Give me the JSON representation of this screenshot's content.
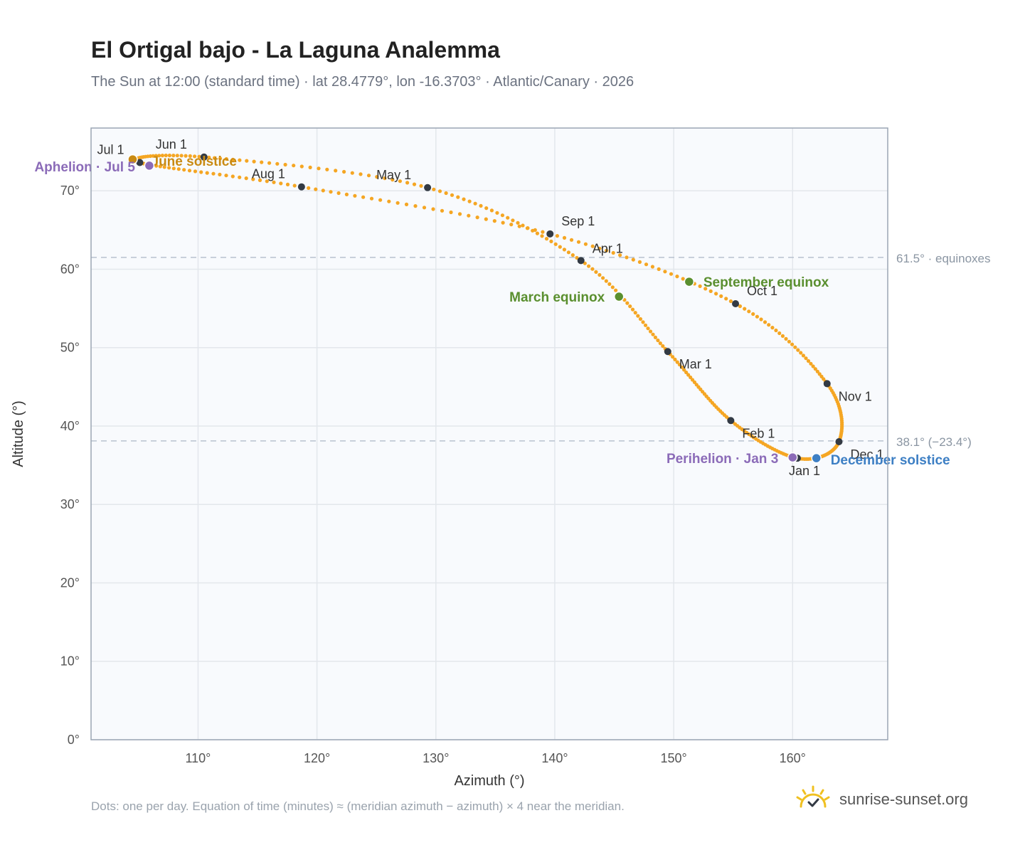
{
  "header": {
    "title": "El Ortigal bajo - La Laguna Analemma",
    "subtitle": "The Sun at 12:00 (standard time) · lat 28.4779°, lon -16.3703° · Atlantic/Canary · 2026"
  },
  "footer": {
    "note": "Dots: one per day. Equation of time (minutes) ≈ (meridian azimuth − azimuth) × 4 near the meridian.",
    "brand": "sunrise-sunset.org"
  },
  "colors": {
    "path": "#f5a623",
    "month_dot": "#333a44",
    "equinox": "#5a8f2f",
    "december_solstice": "#3d7fc4",
    "june_solstice": "#c98a12",
    "apsis": "#8b6bb8",
    "grid": "#e3e7ec",
    "plot_bg": "#f8fafd",
    "ref_line": "#b8c2cf",
    "brand_sun": "#f0c020"
  },
  "chart_data": {
    "type": "scatter",
    "xlabel": "Azimuth (°)",
    "ylabel": "Altitude (°)",
    "xlim": [
      101,
      168
    ],
    "ylim": [
      0,
      78
    ],
    "grid": true,
    "x_ticks": [
      110,
      120,
      130,
      140,
      150,
      160
    ],
    "y_ticks": [
      0,
      10,
      20,
      30,
      40,
      50,
      60,
      70
    ],
    "x_tick_labels": [
      "110°",
      "120°",
      "130°",
      "140°",
      "150°",
      "160°"
    ],
    "y_tick_labels": [
      "0°",
      "10°",
      "20°",
      "30°",
      "40°",
      "50°",
      "60°",
      "70°"
    ],
    "reference_lines": [
      {
        "y": 61.5,
        "label": "61.5° · equinoxes"
      },
      {
        "y": 38.1,
        "label": "38.1° (−23.4°)"
      }
    ],
    "month_markers": [
      {
        "label": "Jan 1",
        "x": 160.4,
        "y": 35.9
      },
      {
        "label": "Feb 1",
        "x": 154.8,
        "y": 40.7
      },
      {
        "label": "Mar 1",
        "x": 149.5,
        "y": 49.5
      },
      {
        "label": "Apr 1",
        "x": 142.2,
        "y": 61.1
      },
      {
        "label": "May 1",
        "x": 129.3,
        "y": 70.4
      },
      {
        "label": "Jun 1",
        "x": 110.5,
        "y": 74.3
      },
      {
        "label": "Jul 1",
        "x": 105.1,
        "y": 73.6
      },
      {
        "label": "Aug 1",
        "x": 118.7,
        "y": 70.5
      },
      {
        "label": "Sep 1",
        "x": 139.6,
        "y": 64.5
      },
      {
        "label": "Oct 1",
        "x": 155.2,
        "y": 55.6
      },
      {
        "label": "Nov 1",
        "x": 162.9,
        "y": 45.4
      },
      {
        "label": "Dec 1",
        "x": 163.9,
        "y": 38.0
      }
    ],
    "events": [
      {
        "label": "March equinox",
        "x": 145.4,
        "y": 56.5
      },
      {
        "label": "September equinox",
        "x": 151.3,
        "y": 58.4
      },
      {
        "label": "June solstice",
        "x": 104.5,
        "y": 74.0
      },
      {
        "label": "December solstice",
        "x": 162.0,
        "y": 35.9
      },
      {
        "label": "Aphelion · Jul 5",
        "x": 105.9,
        "y": 73.2
      },
      {
        "label": "Perihelion · Jan 3",
        "x": 160.0,
        "y": 36.0
      }
    ]
  }
}
